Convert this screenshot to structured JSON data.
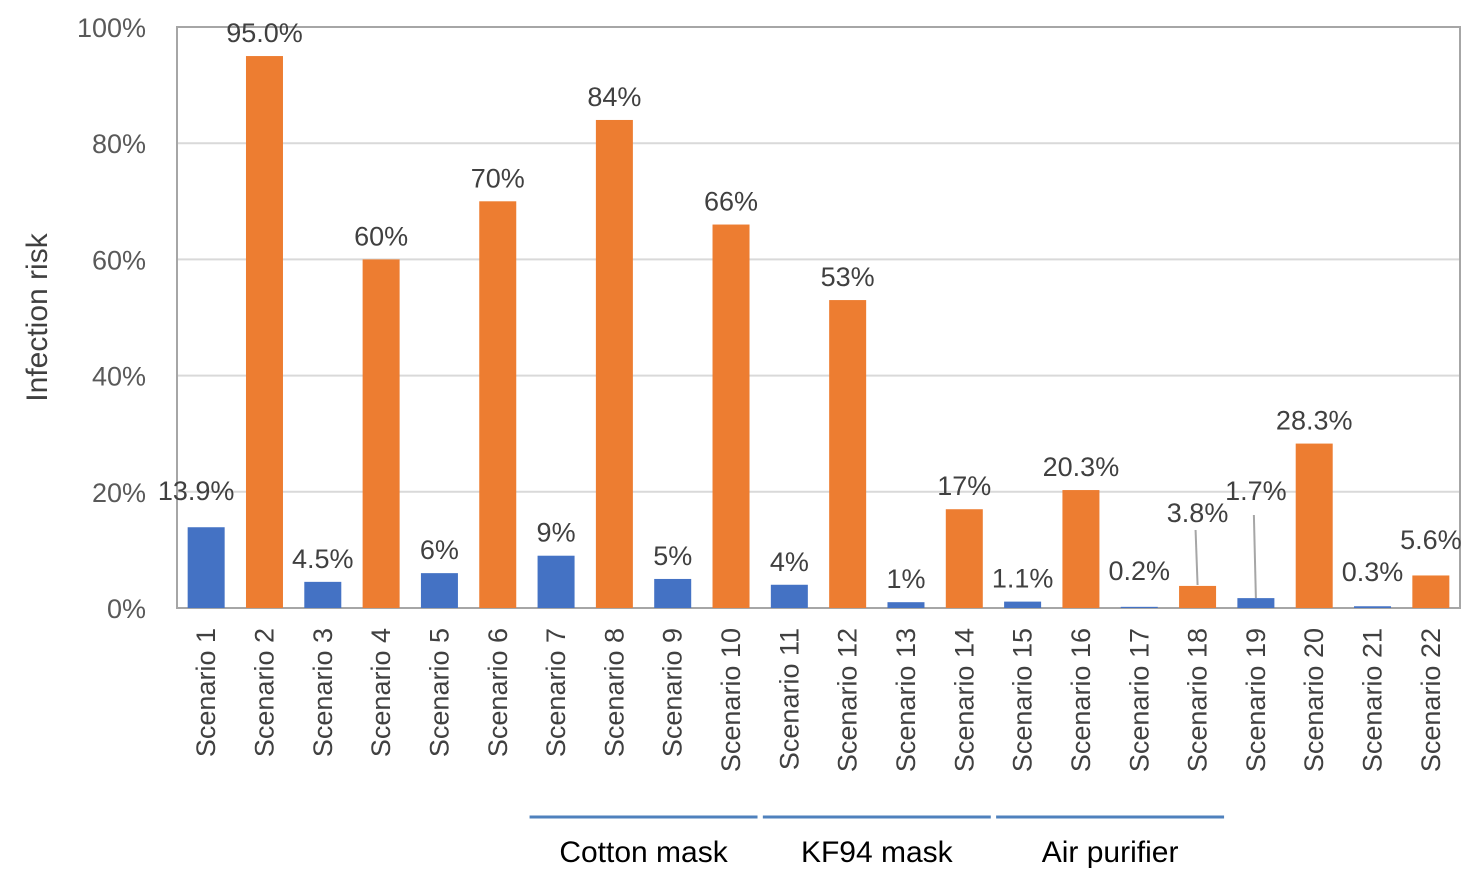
{
  "chart_data": {
    "type": "bar",
    "ylabel": "Infection risk",
    "ylim": [
      0,
      100
    ],
    "y_ticks": [
      "0%",
      "20%",
      "40%",
      "60%",
      "80%",
      "100%"
    ],
    "grid": true,
    "categories": [
      "Scenario 1",
      "Scenario 2",
      "Scenario 3",
      "Scenario 4",
      "Scenario 5",
      "Scenario 6",
      "Scenario 7",
      "Scenario 8",
      "Scenario 9",
      "Scenario 10",
      "Scenario 11",
      "Scenario 12",
      "Scenario 13",
      "Scenario 14",
      "Scenario 15",
      "Scenario 16",
      "Scenario 17",
      "Scenario 18",
      "Scenario 19",
      "Scenario 20",
      "Scenario 21",
      "Scenario 22"
    ],
    "values": [
      13.9,
      95.0,
      4.5,
      60,
      6,
      70,
      9,
      84,
      5,
      66,
      4,
      53,
      1,
      17,
      1.1,
      20.3,
      0.2,
      3.8,
      1.7,
      28.3,
      0.3,
      5.6
    ],
    "labels": [
      "13.9%",
      "95.0%",
      "4.5%",
      "60%",
      "6%",
      "70%",
      "9%",
      "84%",
      "5%",
      "66%",
      "4%",
      "53%",
      "1%",
      "17%",
      "1.1%",
      "20.3%",
      "0.2%",
      "3.8%",
      "1.7%",
      "28.3%",
      "0.3%",
      "5.6%"
    ],
    "bar_colors": [
      "#4472C4",
      "#ED7D31"
    ],
    "groups": [
      {
        "label": "Cotton mask",
        "from": 7,
        "to": 10
      },
      {
        "label": "KF94 mask",
        "from": 11,
        "to": 14
      },
      {
        "label": "Air purifier",
        "from": 15,
        "to": 18
      }
    ],
    "group_line_color": "#4F81BD",
    "grid_color": "#D9D9D9",
    "frame_color": "#A6A6A6"
  }
}
